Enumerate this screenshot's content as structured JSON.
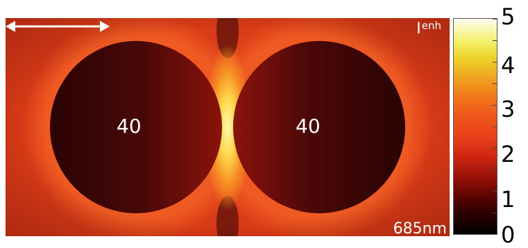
{
  "field_map": {
    "quantity_symbol": "I",
    "quantity_superscript": "enh",
    "left_sphere_label": "40",
    "right_sphere_label": "40",
    "wavelength_label": "685nm",
    "hotspot_color": "#ffd84a",
    "background_color": "#d93a17"
  },
  "colorbar": {
    "labels": [
      "5",
      "4",
      "3",
      "2",
      "1",
      "0"
    ],
    "min": 0,
    "max": 5
  }
}
